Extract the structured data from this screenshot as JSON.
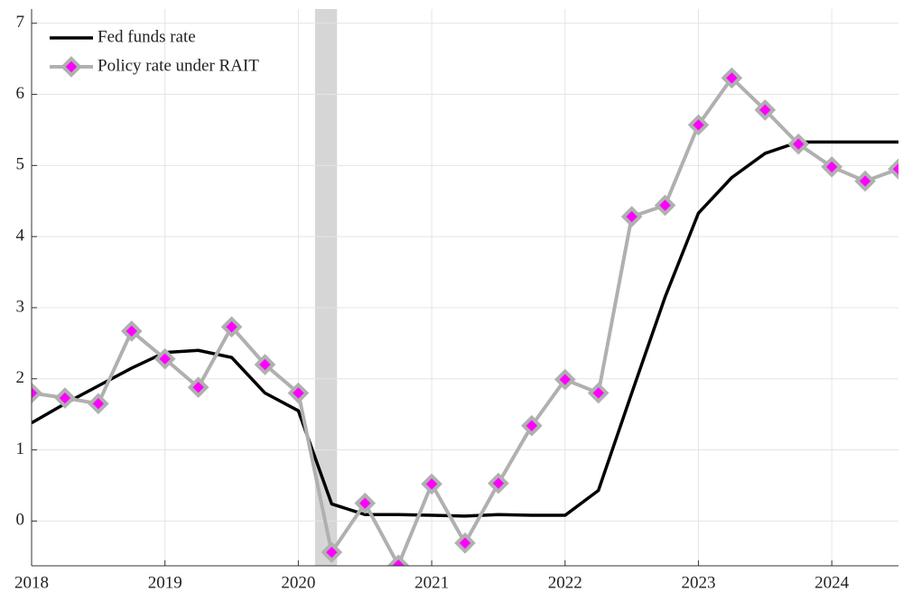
{
  "chart_data": {
    "type": "line",
    "x": [
      2018.0,
      2018.25,
      2018.5,
      2018.75,
      2019.0,
      2019.25,
      2019.5,
      2019.75,
      2020.0,
      2020.25,
      2020.5,
      2020.75,
      2021.0,
      2021.25,
      2021.5,
      2021.75,
      2022.0,
      2022.25,
      2022.5,
      2022.75,
      2023.0,
      2023.25,
      2023.5,
      2023.75,
      2024.0,
      2024.25,
      2024.5
    ],
    "series": [
      {
        "name": "Fed funds rate",
        "color": "#000000",
        "values": [
          1.38,
          1.65,
          1.9,
          2.15,
          2.37,
          2.4,
          2.3,
          1.8,
          1.55,
          0.24,
          0.09,
          0.09,
          0.08,
          0.07,
          0.09,
          0.08,
          0.08,
          0.43,
          1.8,
          3.15,
          4.33,
          4.83,
          5.17,
          5.33,
          5.33,
          5.33,
          5.33
        ]
      },
      {
        "name": "Policy rate under RAIT",
        "color": "#b0b0b0",
        "marker_color": "#ff00ff",
        "values": [
          1.8,
          1.73,
          1.65,
          2.67,
          2.28,
          1.88,
          2.73,
          2.2,
          1.8,
          -0.44,
          0.25,
          -0.62,
          0.52,
          -0.31,
          0.53,
          1.34,
          1.99,
          1.8,
          4.28,
          4.44,
          5.57,
          6.23,
          5.78,
          5.3,
          4.98,
          4.78,
          4.95
        ]
      }
    ],
    "shade": [
      2020.125,
      2020.29
    ],
    "xlim": [
      2018,
      2024.5
    ],
    "xticks": [
      2018,
      2019,
      2020,
      2021,
      2022,
      2023,
      2024
    ],
    "ylim": [
      -0.63,
      7.2
    ],
    "yticks": [
      0,
      1,
      2,
      3,
      4,
      5,
      6,
      7
    ],
    "grid": true,
    "legend": "upper left"
  }
}
